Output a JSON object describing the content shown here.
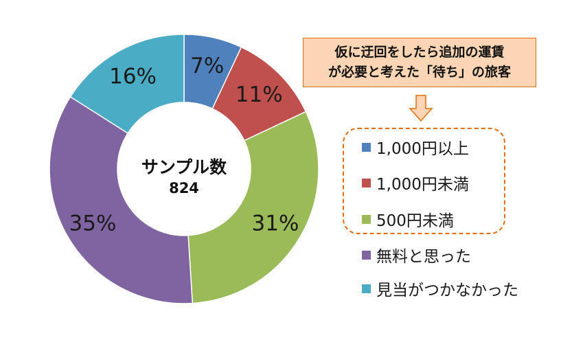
{
  "chart_data": {
    "type": "donut",
    "center_title": "サンプル数",
    "center_value": "824",
    "slices": [
      {
        "label": "1,000円以上",
        "value": 7,
        "display": "7%",
        "color": "#4f81bd"
      },
      {
        "label": "1,000円未満",
        "value": 11,
        "display": "11%",
        "color": "#c0504d"
      },
      {
        "label": "500円未満",
        "value": 31,
        "display": "31%",
        "color": "#9bbb59"
      },
      {
        "label": "無料と思った",
        "value": 35,
        "display": "35%",
        "color": "#8064a2"
      },
      {
        "label": "見当がつかなかった",
        "value": 16,
        "display": "16%",
        "color": "#4bacc6"
      }
    ],
    "legend_placement": "right"
  },
  "callout": {
    "line1": "仮に迂回をしたら追加の運賃",
    "line2": "が必要と考えた「待ち」の旅客",
    "fill": "#fcd5b4",
    "border": "#e46c0a"
  }
}
